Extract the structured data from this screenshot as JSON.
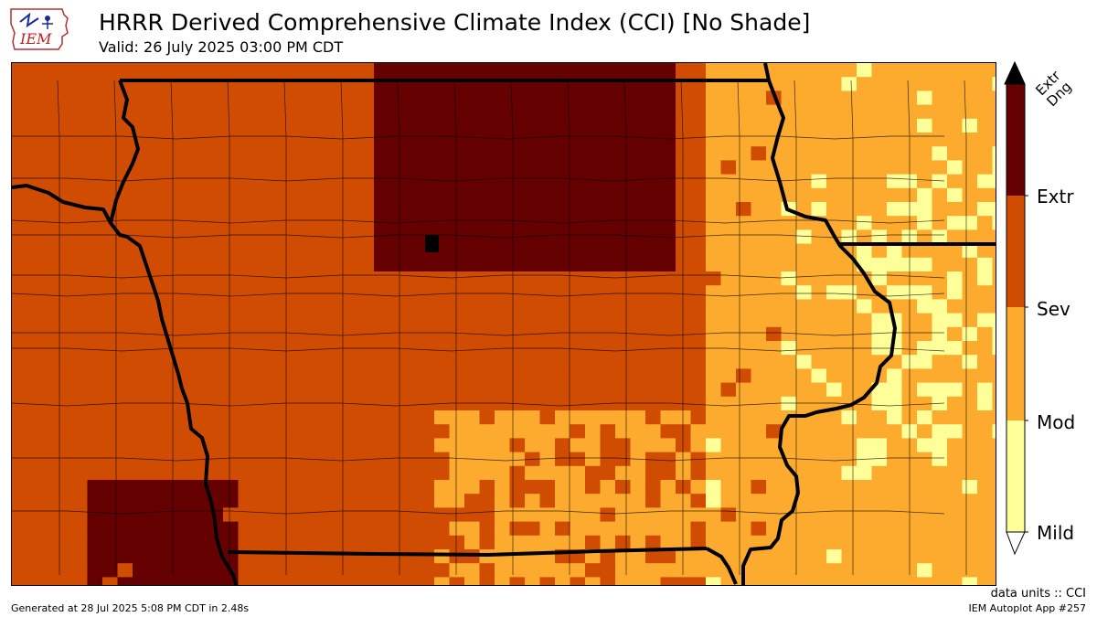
{
  "header": {
    "logo_text": "IEM",
    "title": "HRRR Derived Comprehensive Climate Index (CCI) [No Shade]",
    "subtitle": "Valid: 26 July 2025 03:00 PM CDT"
  },
  "legend": {
    "categories": [
      {
        "label": "Mild",
        "color": "#ffff99"
      },
      {
        "label": "Mod",
        "color": "#fcab2e"
      },
      {
        "label": "Sev",
        "color": "#cf4c02"
      },
      {
        "label": "Extr",
        "color": "#640000"
      },
      {
        "label": "Extr Dng",
        "color": "#000000"
      }
    ],
    "top_label_line1": "Extr",
    "top_label_line2": "Dng",
    "tick_labels": [
      "Mild",
      "Mod",
      "Sev",
      "Extr"
    ]
  },
  "footer": {
    "units": "data units :: CCI",
    "generated": "Generated at 28 Jul 2025 5:08 PM CDT in 2.48s",
    "app": "IEM Autoplot App #257"
  }
}
